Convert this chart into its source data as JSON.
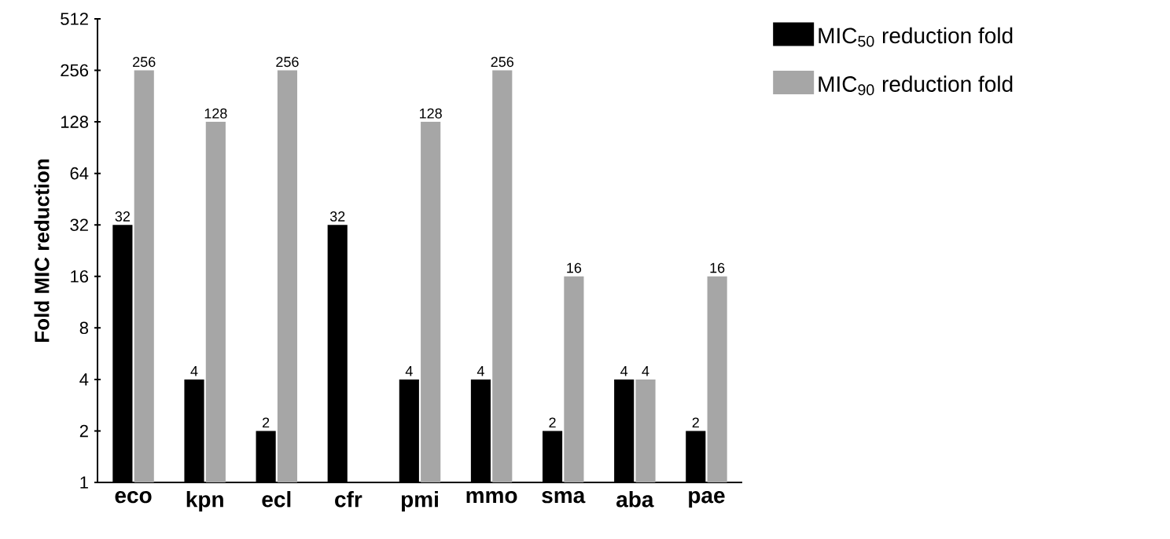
{
  "chart_data": {
    "type": "bar",
    "ylabel": "Fold MIC reduction",
    "categories": [
      "eco",
      "kpn",
      "ecl",
      "cfr",
      "pmi",
      "mmo",
      "sma",
      "aba",
      "pae"
    ],
    "series": [
      {
        "name": "MIC$_{50}$ reduction fold",
        "color": "#000000",
        "values": [
          32,
          4,
          2,
          32,
          4,
          4,
          2,
          4,
          2
        ]
      },
      {
        "name": "MIC$_{90}$ reduction fold",
        "color": "#a6a6a6",
        "values": [
          256,
          128,
          256,
          null,
          128,
          256,
          16,
          4,
          16
        ]
      }
    ],
    "log": "y",
    "ylim": [
      1,
      512
    ],
    "yticks": [
      1,
      2,
      4,
      8,
      16,
      32,
      64,
      128,
      256,
      512
    ],
    "data_labels": true,
    "grid": false,
    "legend": "right"
  }
}
